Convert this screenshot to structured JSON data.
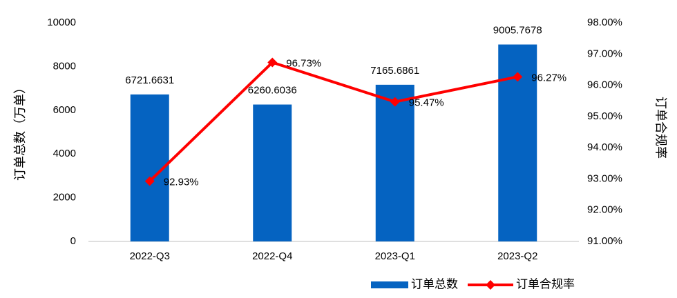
{
  "chart_data": {
    "type": "bar",
    "categories": [
      "2022-Q3",
      "2022-Q4",
      "2023-Q1",
      "2023-Q2"
    ],
    "y_label": "订单总数（万单）",
    "y2_label": "订单合规率",
    "ylim": [
      0,
      10000
    ],
    "yticks": [
      0,
      2000,
      4000,
      6000,
      8000,
      10000
    ],
    "y2lim": [
      91,
      98
    ],
    "y2ticks": [
      {
        "value": 91,
        "label": "91.00%"
      },
      {
        "value": 92,
        "label": "92.00%"
      },
      {
        "value": 93,
        "label": "93.00%"
      },
      {
        "value": 94,
        "label": "94.00%"
      },
      {
        "value": 95,
        "label": "95.00%"
      },
      {
        "value": 96,
        "label": "96.00%"
      },
      {
        "value": 97,
        "label": "97.00%"
      },
      {
        "value": 98,
        "label": "98.00%"
      }
    ],
    "legend": "bottom-right",
    "series": [
      {
        "name": "订单总数",
        "type": "bar",
        "color": "#0563c1",
        "values": [
          6721.6631,
          6260.6036,
          7165.6861,
          9005.7678
        ]
      },
      {
        "name": "订单合规率",
        "type": "line",
        "axis": "y2",
        "color": "#ff0000",
        "values": [
          92.93,
          96.73,
          95.47,
          96.27
        ],
        "value_labels": [
          "92.93%",
          "96.73%",
          "95.47%",
          "96.27%"
        ]
      }
    ]
  }
}
